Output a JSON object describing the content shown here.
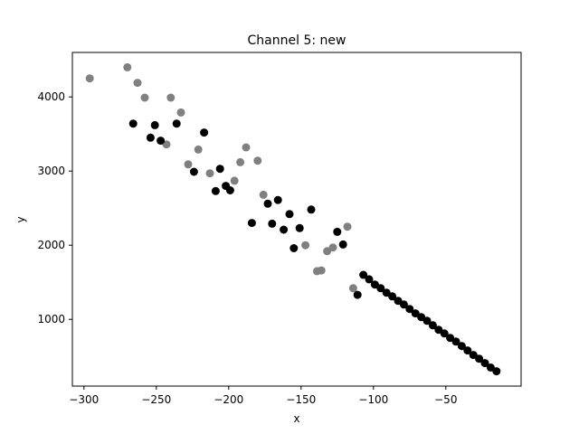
{
  "chart_data": {
    "type": "scatter",
    "title": "Channel 5: new",
    "xlabel": "x",
    "ylabel": "y",
    "xlim": [
      -308,
      2
    ],
    "ylim": [
      100,
      4600
    ],
    "xticks": [
      -300,
      -250,
      -200,
      -150,
      -100,
      -50
    ],
    "yticks": [
      1000,
      2000,
      3000,
      4000
    ],
    "grid": false,
    "colors": {
      "gray": "#808080",
      "black": "#000000"
    },
    "series": [
      {
        "color": "#808080",
        "points": [
          [
            -296,
            4250
          ],
          [
            -270,
            4400
          ],
          [
            -263,
            4190
          ],
          [
            -258,
            3990
          ],
          [
            -243,
            3360
          ],
          [
            -240,
            3990
          ],
          [
            -233,
            3790
          ],
          [
            -228,
            3090
          ],
          [
            -221,
            3290
          ],
          [
            -213,
            2970
          ],
          [
            -196,
            2870
          ],
          [
            -192,
            3120
          ],
          [
            -188,
            3320
          ],
          [
            -180,
            3140
          ],
          [
            -176,
            2680
          ],
          [
            -147,
            2000
          ],
          [
            -139,
            1650
          ],
          [
            -136,
            1660
          ],
          [
            -132,
            1920
          ],
          [
            -128,
            1970
          ],
          [
            -118,
            2250
          ],
          [
            -114,
            1420
          ]
        ]
      },
      {
        "color": "#000000",
        "points": [
          [
            -266,
            3640
          ],
          [
            -254,
            3450
          ],
          [
            -251,
            3620
          ],
          [
            -247,
            3410
          ],
          [
            -236,
            3640
          ],
          [
            -217,
            3520
          ],
          [
            -224,
            2990
          ],
          [
            -209,
            2730
          ],
          [
            -206,
            3030
          ],
          [
            -202,
            2800
          ],
          [
            -199,
            2740
          ],
          [
            -184,
            2300
          ],
          [
            -173,
            2560
          ],
          [
            -170,
            2290
          ],
          [
            -166,
            2610
          ],
          [
            -162,
            2210
          ],
          [
            -158,
            2420
          ],
          [
            -155,
            1960
          ],
          [
            -151,
            2230
          ],
          [
            -143,
            2480
          ],
          [
            -125,
            2180
          ],
          [
            -121,
            2010
          ],
          [
            -111,
            1330
          ],
          [
            -107,
            1600
          ],
          [
            -103,
            1540
          ],
          [
            -99,
            1470
          ],
          [
            -95,
            1420
          ],
          [
            -91,
            1360
          ],
          [
            -87,
            1310
          ],
          [
            -83,
            1250
          ],
          [
            -79,
            1200
          ],
          [
            -75,
            1140
          ],
          [
            -71,
            1080
          ],
          [
            -67,
            1030
          ],
          [
            -63,
            980
          ],
          [
            -59,
            920
          ],
          [
            -55,
            860
          ],
          [
            -51,
            810
          ],
          [
            -47,
            750
          ],
          [
            -43,
            700
          ],
          [
            -39,
            640
          ],
          [
            -35,
            580
          ],
          [
            -31,
            520
          ],
          [
            -27,
            470
          ],
          [
            -23,
            410
          ],
          [
            -19,
            350
          ],
          [
            -15,
            300
          ]
        ]
      }
    ]
  }
}
